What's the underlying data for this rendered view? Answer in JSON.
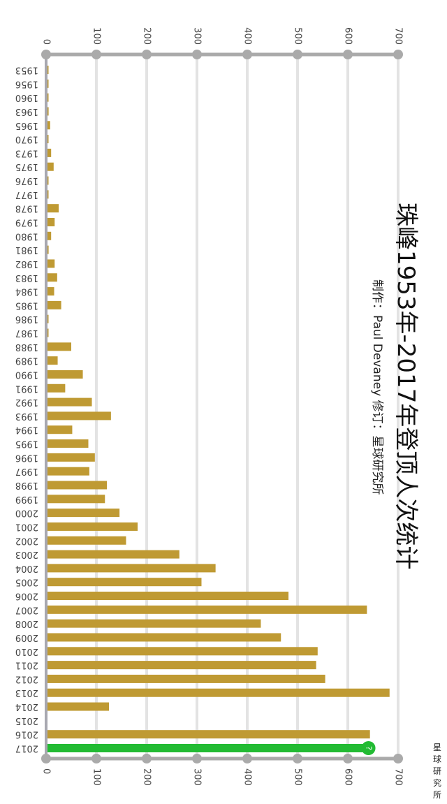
{
  "chart_data": {
    "type": "bar",
    "orientation": "rotated 90° clockwise (horizontal bars)",
    "title": "珠峰1953年-2017年登顶人次统计",
    "subtitle": "制作：Paul Devaney  修订：星球研究所",
    "watermark": "星球研究所",
    "xlim": [
      0,
      700
    ],
    "ticks": [
      "0",
      "100",
      "200",
      "300",
      "400",
      "500",
      "600",
      "700"
    ],
    "grid": true,
    "categories": [
      "1953",
      "1956",
      "1960",
      "1963",
      "1965",
      "1970",
      "1973",
      "1975",
      "1976",
      "1977",
      "1978",
      "1979",
      "1980",
      "1981",
      "1982",
      "1983",
      "1984",
      "1985",
      "1986",
      "1987",
      "1988",
      "1989",
      "1990",
      "1991",
      "1992",
      "1993",
      "1994",
      "1995",
      "1996",
      "1997",
      "1998",
      "1999",
      "2000",
      "2001",
      "2002",
      "2003",
      "2004",
      "2005",
      "2006",
      "2007",
      "2008",
      "2009",
      "2010",
      "2011",
      "2012",
      "2013",
      "2014",
      "2015",
      "2016",
      "2017"
    ],
    "values": [
      2,
      3,
      3,
      5,
      8,
      3,
      10,
      15,
      2,
      2,
      25,
      17,
      10,
      5,
      17,
      22,
      16,
      30,
      3,
      2,
      50,
      23,
      73,
      38,
      91,
      129,
      52,
      84,
      97,
      86,
      121,
      117,
      146,
      182,
      159,
      265,
      337,
      309,
      482,
      638,
      427,
      467,
      540,
      537,
      555,
      683,
      125,
      0,
      644,
      648
    ],
    "highlight": {
      "category": "2017",
      "marker": "?"
    },
    "colors": {
      "bar": "#bf9a33",
      "highlight": "#22bb33",
      "axis": "#aaaaaa",
      "grid": "#e3e3e3"
    }
  }
}
